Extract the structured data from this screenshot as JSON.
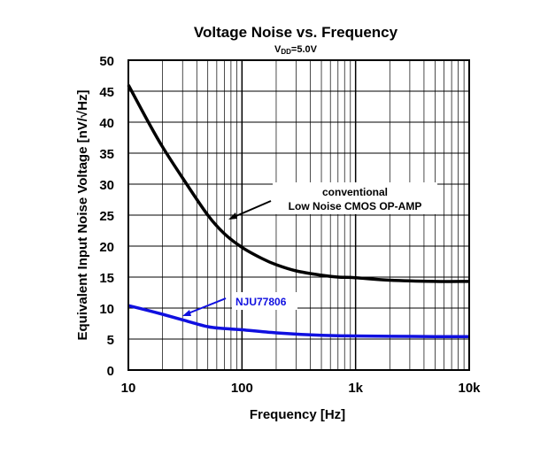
{
  "chart_data": {
    "type": "line",
    "title": "Voltage Noise vs. Frequency",
    "subtitle": {
      "main": "V",
      "sub": "DD",
      "rest": "=5.0V"
    },
    "xlabel": "Frequency [Hz]",
    "ylabel": "Equivalent Input Noise Voltage [nV/√Hz]",
    "xscale": "log",
    "xlim": [
      10,
      10000
    ],
    "ylim": [
      0,
      50
    ],
    "grid": true,
    "x_ticks": [
      10,
      100,
      1000,
      10000
    ],
    "x_tick_labels": [
      "10",
      "100",
      "1k",
      "10k"
    ],
    "y_ticks": [
      0,
      5,
      10,
      15,
      20,
      25,
      30,
      35,
      40,
      45,
      50
    ],
    "y_tick_labels": [
      "0",
      "5",
      "10",
      "15",
      "20",
      "25",
      "30",
      "35",
      "40",
      "45",
      "50"
    ],
    "series": [
      {
        "name": "conventional Low Noise CMOS OP-AMP",
        "color": "#000000",
        "x": [
          10,
          15,
          20,
          30,
          50,
          70,
          100,
          150,
          200,
          300,
          500,
          700,
          1000,
          2000,
          5000,
          10000
        ],
        "y": [
          46,
          40,
          36,
          31,
          25,
          22,
          19.8,
          18,
          17,
          16,
          15.3,
          15,
          14.9,
          14.5,
          14.3,
          14.3
        ]
      },
      {
        "name": "NJU77806",
        "color": "#1010e0",
        "x": [
          10,
          15,
          20,
          30,
          50,
          70,
          100,
          200,
          500,
          1000,
          2000,
          5000,
          10000
        ],
        "y": [
          10.4,
          9.6,
          9,
          8.1,
          7,
          6.7,
          6.5,
          6,
          5.6,
          5.5,
          5.45,
          5.4,
          5.4
        ]
      }
    ],
    "annotations": [
      {
        "lines": [
          "conventional",
          "Low Noise CMOS OP-AMP"
        ],
        "color": "#000000"
      },
      {
        "lines": [
          "NJU77806"
        ],
        "color": "#1010e0"
      }
    ]
  }
}
